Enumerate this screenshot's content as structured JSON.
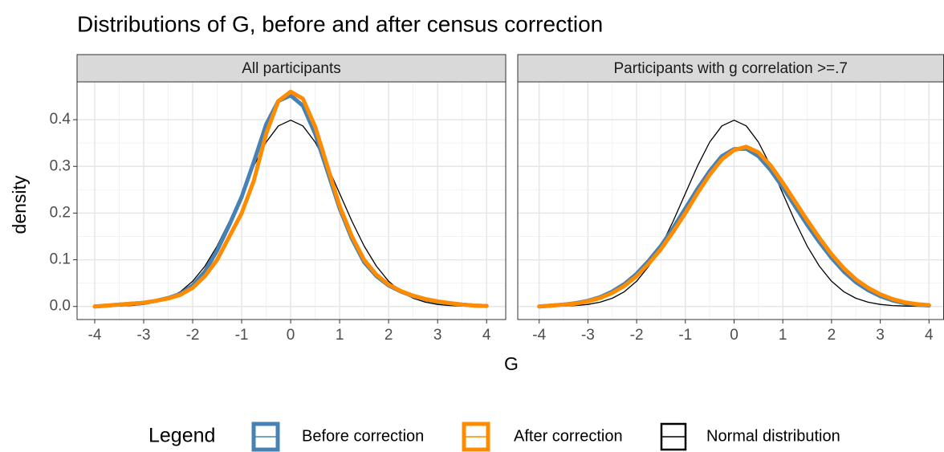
{
  "title": "Distributions of G, before and after census correction",
  "x_label": "G",
  "y_label": "density",
  "legend_title": "Legend",
  "chart_data": [
    {
      "type": "line",
      "title": "All participants",
      "x": [
        -4,
        -3.75,
        -3.5,
        -3.25,
        -3,
        -2.75,
        -2.5,
        -2.25,
        -2,
        -1.75,
        -1.5,
        -1.25,
        -1,
        -0.75,
        -0.5,
        -0.25,
        0,
        0.25,
        0.5,
        0.75,
        1,
        1.25,
        1.5,
        1.75,
        2,
        2.25,
        2.5,
        2.75,
        3,
        3.25,
        3.5,
        3.75,
        4
      ],
      "xlim": [
        -4.36,
        4.39
      ],
      "ylim": [
        -0.028,
        0.481
      ],
      "xticks": [
        -4,
        -3,
        -2,
        -1,
        0,
        1,
        2,
        3,
        4
      ],
      "yticks": [
        {
          "value": 0,
          "label": "0.0"
        },
        0.1,
        0.2,
        0.3,
        0.4
      ],
      "grid": true,
      "series": [
        {
          "name": "Normal distribution",
          "color": "#000000",
          "values": [
            0.0001,
            0.0004,
            0.0009,
            0.002,
            0.0044,
            0.0091,
            0.0175,
            0.0317,
            0.054,
            0.0863,
            0.1295,
            0.1826,
            0.242,
            0.3011,
            0.3521,
            0.3867,
            0.3989,
            0.3867,
            0.3521,
            0.3011,
            0.242,
            0.1826,
            0.1295,
            0.0863,
            0.054,
            0.0317,
            0.0175,
            0.0091,
            0.0044,
            0.002,
            0.0009,
            0.0004,
            0.0001
          ]
        },
        {
          "name": "Before correction",
          "color": "#4682b4",
          "values": [
            0.0,
            0.002,
            0.004,
            0.006,
            0.008,
            0.012,
            0.018,
            0.027,
            0.045,
            0.075,
            0.12,
            0.175,
            0.235,
            0.31,
            0.39,
            0.44,
            0.452,
            0.43,
            0.37,
            0.29,
            0.21,
            0.145,
            0.095,
            0.065,
            0.045,
            0.032,
            0.022,
            0.015,
            0.01,
            0.007,
            0.004,
            0.002,
            0.001
          ]
        },
        {
          "name": "After correction",
          "color": "#ff8c00",
          "values": [
            0.0,
            0.002,
            0.004,
            0.006,
            0.008,
            0.012,
            0.017,
            0.025,
            0.04,
            0.065,
            0.1,
            0.15,
            0.2,
            0.27,
            0.37,
            0.44,
            0.46,
            0.445,
            0.385,
            0.3,
            0.215,
            0.15,
            0.1,
            0.068,
            0.047,
            0.033,
            0.023,
            0.016,
            0.011,
            0.007,
            0.004,
            0.002,
            0.001
          ]
        }
      ]
    },
    {
      "type": "line",
      "title": "Participants with g correlation >=.7",
      "x": [
        -4,
        -3.75,
        -3.5,
        -3.25,
        -3,
        -2.75,
        -2.5,
        -2.25,
        -2,
        -1.75,
        -1.5,
        -1.25,
        -1,
        -0.75,
        -0.5,
        -0.25,
        0,
        0.25,
        0.5,
        0.75,
        1,
        1.25,
        1.5,
        1.75,
        2,
        2.25,
        2.5,
        2.75,
        3,
        3.25,
        3.5,
        3.75,
        4
      ],
      "xlim": [
        -4.44,
        4.3
      ],
      "ylim": [
        -0.028,
        0.481
      ],
      "xticks": [
        -4,
        -3,
        -2,
        -1,
        0,
        1,
        2,
        3,
        4
      ],
      "yticks": [
        {
          "value": 0,
          "label": "0.0"
        },
        0.1,
        0.2,
        0.3,
        0.4
      ],
      "grid": true,
      "series": [
        {
          "name": "Normal distribution",
          "color": "#000000",
          "values": [
            0.0001,
            0.0004,
            0.0009,
            0.002,
            0.0044,
            0.0091,
            0.0175,
            0.0317,
            0.054,
            0.0863,
            0.1295,
            0.1826,
            0.242,
            0.3011,
            0.3521,
            0.3867,
            0.3989,
            0.3867,
            0.3521,
            0.3011,
            0.242,
            0.1826,
            0.1295,
            0.0863,
            0.054,
            0.0317,
            0.0175,
            0.0091,
            0.0044,
            0.002,
            0.0009,
            0.0004,
            0.0001
          ]
        },
        {
          "name": "Before correction",
          "color": "#4682b4",
          "values": [
            0.0,
            0.002,
            0.004,
            0.007,
            0.012,
            0.02,
            0.032,
            0.048,
            0.07,
            0.098,
            0.13,
            0.168,
            0.21,
            0.252,
            0.29,
            0.322,
            0.337,
            0.338,
            0.322,
            0.292,
            0.255,
            0.215,
            0.175,
            0.138,
            0.104,
            0.075,
            0.052,
            0.035,
            0.022,
            0.013,
            0.007,
            0.004,
            0.002
          ]
        },
        {
          "name": "After correction",
          "color": "#ff8c00",
          "values": [
            0.0,
            0.002,
            0.004,
            0.006,
            0.011,
            0.018,
            0.029,
            0.044,
            0.065,
            0.092,
            0.123,
            0.16,
            0.2,
            0.243,
            0.282,
            0.315,
            0.335,
            0.342,
            0.33,
            0.302,
            0.265,
            0.225,
            0.185,
            0.147,
            0.112,
            0.082,
            0.058,
            0.04,
            0.026,
            0.016,
            0.009,
            0.005,
            0.003
          ]
        }
      ]
    }
  ]
}
